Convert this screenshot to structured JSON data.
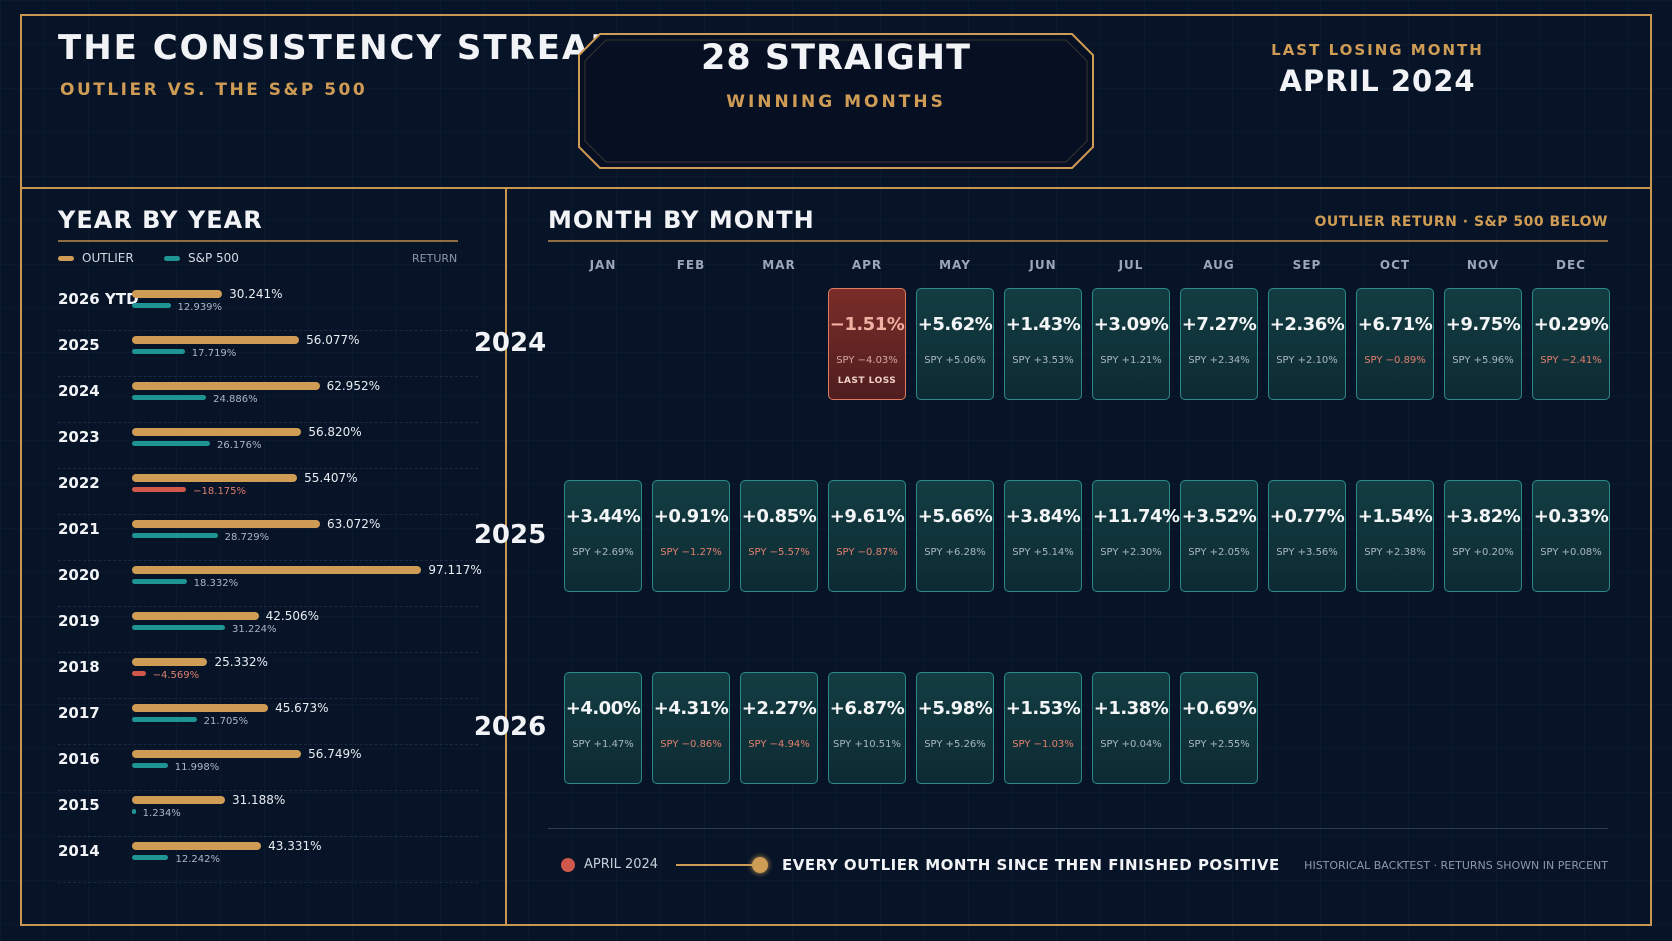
{
  "header": {
    "title": "THE CONSISTENCY STREAK",
    "subtitle": "OUTLIER VS. THE S&P 500",
    "streak_value": "28 STRAIGHT",
    "streak_label": "WINNING MONTHS",
    "last_losing_label": "LAST LOSING MONTH",
    "last_losing_value": "APRIL 2024"
  },
  "colors": {
    "gold": "#cf9c55",
    "teal": "#1f9593",
    "negative": "#d0574b",
    "background": "#071326"
  },
  "yearly": {
    "title": "YEAR BY YEAR",
    "legend_outlier": "OUTLIER",
    "legend_sp": "S&P 500",
    "legend_return": "RETURN"
  },
  "monthly": {
    "title": "MONTH BY MONTH",
    "caption": "OUTLIER RETURN · S&P 500 BELOW",
    "months": [
      "JAN",
      "FEB",
      "MAR",
      "APR",
      "MAY",
      "JUN",
      "JUL",
      "AUG",
      "SEP",
      "OCT",
      "NOV",
      "DEC"
    ],
    "last_loss_note": "LAST LOSS"
  },
  "footer": {
    "start_label": "APRIL 2024",
    "message": "EVERY OUTLIER MONTH SINCE THEN FINISHED POSITIVE",
    "note": "HISTORICAL BACKTEST · RETURNS SHOWN IN PERCENT"
  },
  "chart_data": [
    {
      "type": "bar",
      "title": "YEAR BY YEAR",
      "categories": [
        "2026 YTD",
        "2025",
        "2024",
        "2023",
        "2022",
        "2021",
        "2020",
        "2019",
        "2018",
        "2017",
        "2016",
        "2015",
        "2014"
      ],
      "series": [
        {
          "name": "OUTLIER",
          "values": [
            30.241,
            56.077,
            62.952,
            56.82,
            55.407,
            63.072,
            97.117,
            42.506,
            25.332,
            45.673,
            56.749,
            31.188,
            43.331
          ]
        },
        {
          "name": "S&P 500",
          "values": [
            12.939,
            17.719,
            24.886,
            26.176,
            -18.175,
            28.729,
            18.332,
            31.224,
            -4.569,
            21.705,
            11.998,
            1.234,
            12.242
          ]
        }
      ],
      "value_labels_outlier": [
        "30.241%",
        "56.077%",
        "62.952%",
        "56.820%",
        "55.407%",
        "63.072%",
        "97.117%",
        "42.506%",
        "25.332%",
        "45.673%",
        "56.749%",
        "31.188%",
        "43.331%"
      ],
      "value_labels_sp": [
        "12.939%",
        "17.719%",
        "24.886%",
        "26.176%",
        "−18.175%",
        "28.729%",
        "18.332%",
        "31.224%",
        "−4.569%",
        "21.705%",
        "11.998%",
        "1.234%",
        "12.242%"
      ]
    },
    {
      "type": "heatmap",
      "title": "MONTH BY MONTH",
      "rows": [
        {
          "year": "2024",
          "cells": [
            {
              "month": "APR",
              "outlier": "−1.51%",
              "spy": "SPY −4.03%",
              "loss": true
            },
            {
              "month": "MAY",
              "outlier": "+5.62%",
              "spy": "SPY +5.06%"
            },
            {
              "month": "JUN",
              "outlier": "+1.43%",
              "spy": "SPY +3.53%"
            },
            {
              "month": "JUL",
              "outlier": "+3.09%",
              "spy": "SPY +1.21%"
            },
            {
              "month": "AUG",
              "outlier": "+7.27%",
              "spy": "SPY +2.34%"
            },
            {
              "month": "SEP",
              "outlier": "+2.36%",
              "spy": "SPY +2.10%"
            },
            {
              "month": "OCT",
              "outlier": "+6.71%",
              "spy": "SPY −0.89%"
            },
            {
              "month": "NOV",
              "outlier": "+9.75%",
              "spy": "SPY +5.96%"
            },
            {
              "month": "DEC",
              "outlier": "+0.29%",
              "spy": "SPY −2.41%"
            }
          ]
        },
        {
          "year": "2025",
          "cells": [
            {
              "month": "JAN",
              "outlier": "+3.44%",
              "spy": "SPY +2.69%"
            },
            {
              "month": "FEB",
              "outlier": "+0.91%",
              "spy": "SPY −1.27%"
            },
            {
              "month": "MAR",
              "outlier": "+0.85%",
              "spy": "SPY −5.57%"
            },
            {
              "month": "APR",
              "outlier": "+9.61%",
              "spy": "SPY −0.87%"
            },
            {
              "month": "MAY",
              "outlier": "+5.66%",
              "spy": "SPY +6.28%"
            },
            {
              "month": "JUN",
              "outlier": "+3.84%",
              "spy": "SPY +5.14%"
            },
            {
              "month": "JUL",
              "outlier": "+11.74%",
              "spy": "SPY +2.30%"
            },
            {
              "month": "AUG",
              "outlier": "+3.52%",
              "spy": "SPY +2.05%"
            },
            {
              "month": "SEP",
              "outlier": "+0.77%",
              "spy": "SPY +3.56%"
            },
            {
              "month": "OCT",
              "outlier": "+1.54%",
              "spy": "SPY +2.38%"
            },
            {
              "month": "NOV",
              "outlier": "+3.82%",
              "spy": "SPY +0.20%"
            },
            {
              "month": "DEC",
              "outlier": "+0.33%",
              "spy": "SPY +0.08%"
            }
          ]
        },
        {
          "year": "2026",
          "cells": [
            {
              "month": "JAN",
              "outlier": "+4.00%",
              "spy": "SPY +1.47%"
            },
            {
              "month": "FEB",
              "outlier": "+4.31%",
              "spy": "SPY −0.86%"
            },
            {
              "month": "MAR",
              "outlier": "+2.27%",
              "spy": "SPY −4.94%"
            },
            {
              "month": "APR",
              "outlier": "+6.87%",
              "spy": "SPY +10.51%"
            },
            {
              "month": "MAY",
              "outlier": "+5.98%",
              "spy": "SPY +5.26%"
            },
            {
              "month": "JUN",
              "outlier": "+1.53%",
              "spy": "SPY −1.03%"
            },
            {
              "month": "JUL",
              "outlier": "+1.38%",
              "spy": "SPY +0.04%"
            },
            {
              "month": "AUG",
              "outlier": "+0.69%",
              "spy": "SPY +2.55%"
            }
          ]
        }
      ]
    }
  ]
}
